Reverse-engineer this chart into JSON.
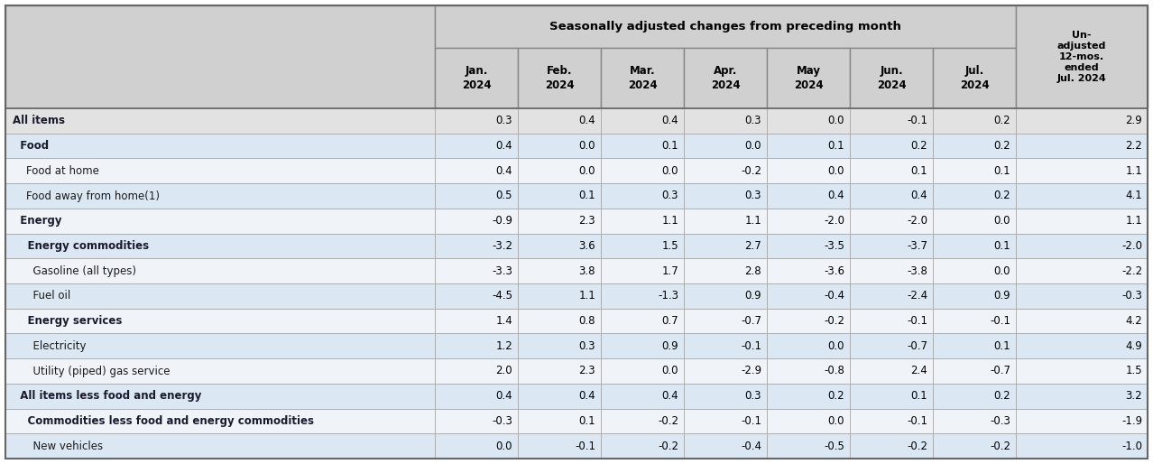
{
  "title_main": "Seasonally adjusted changes from preceding month",
  "col_headers_7": [
    "Jan.\n2024",
    "Feb.\n2024",
    "Mar.\n2024",
    "Apr.\n2024",
    "May\n2024",
    "Jun.\n2024",
    "Jul.\n2024"
  ],
  "col_header_last": "Un-\nadjusted\n12-mos.\nended\nJul. 2024",
  "rows": [
    {
      "label": "All items",
      "indent": 0,
      "bold": true,
      "bg": "#e2e2e2",
      "values": [
        0.3,
        0.4,
        0.4,
        0.3,
        0.0,
        -0.1,
        0.2,
        2.9
      ]
    },
    {
      "label": "  Food",
      "indent": 1,
      "bold": true,
      "bg": "#dbe8f4",
      "values": [
        0.4,
        0.0,
        0.1,
        0.0,
        0.1,
        0.2,
        0.2,
        2.2
      ]
    },
    {
      "label": "    Food at home",
      "indent": 2,
      "bold": false,
      "bg": "#f0f4f9",
      "values": [
        0.4,
        0.0,
        0.0,
        -0.2,
        0.0,
        0.1,
        0.1,
        1.1
      ]
    },
    {
      "label": "    Food away from home(1)",
      "indent": 2,
      "bold": false,
      "bg": "#dbe8f4",
      "values": [
        0.5,
        0.1,
        0.3,
        0.3,
        0.4,
        0.4,
        0.2,
        4.1
      ]
    },
    {
      "label": "  Energy",
      "indent": 1,
      "bold": true,
      "bg": "#f0f4f9",
      "values": [
        -0.9,
        2.3,
        1.1,
        1.1,
        -2.0,
        -2.0,
        0.0,
        1.1
      ]
    },
    {
      "label": "    Energy commodities",
      "indent": 2,
      "bold": true,
      "bg": "#dbe8f4",
      "values": [
        -3.2,
        3.6,
        1.5,
        2.7,
        -3.5,
        -3.7,
        0.1,
        -2.0
      ]
    },
    {
      "label": "      Gasoline (all types)",
      "indent": 3,
      "bold": false,
      "bg": "#f0f4f9",
      "values": [
        -3.3,
        3.8,
        1.7,
        2.8,
        -3.6,
        -3.8,
        0.0,
        -2.2
      ]
    },
    {
      "label": "      Fuel oil",
      "indent": 3,
      "bold": false,
      "bg": "#dbe8f4",
      "values": [
        -4.5,
        1.1,
        -1.3,
        0.9,
        -0.4,
        -2.4,
        0.9,
        -0.3
      ]
    },
    {
      "label": "    Energy services",
      "indent": 2,
      "bold": true,
      "bg": "#f0f4f9",
      "values": [
        1.4,
        0.8,
        0.7,
        -0.7,
        -0.2,
        -0.1,
        -0.1,
        4.2
      ]
    },
    {
      "label": "      Electricity",
      "indent": 3,
      "bold": false,
      "bg": "#dbe8f4",
      "values": [
        1.2,
        0.3,
        0.9,
        -0.1,
        0.0,
        -0.7,
        0.1,
        4.9
      ]
    },
    {
      "label": "      Utility (piped) gas service",
      "indent": 3,
      "bold": false,
      "bg": "#f0f4f9",
      "values": [
        2.0,
        2.3,
        0.0,
        -2.9,
        -0.8,
        2.4,
        -0.7,
        1.5
      ]
    },
    {
      "label": "  All items less food and energy",
      "indent": 1,
      "bold": true,
      "bg": "#dbe8f4",
      "values": [
        0.4,
        0.4,
        0.4,
        0.3,
        0.2,
        0.1,
        0.2,
        3.2
      ]
    },
    {
      "label": "    Commodities less food and energy commodities",
      "indent": 2,
      "bold": true,
      "bg": "#f0f4f9",
      "values": [
        -0.3,
        0.1,
        -0.2,
        -0.1,
        0.0,
        -0.1,
        -0.3,
        -1.9
      ]
    },
    {
      "label": "      New vehicles",
      "indent": 3,
      "bold": false,
      "bg": "#dbe8f4",
      "values": [
        0.0,
        -0.1,
        -0.2,
        -0.4,
        -0.5,
        -0.2,
        -0.2,
        -1.0
      ]
    }
  ],
  "header_bg": "#d0d0d0",
  "all_items_bg": "#e2e2e2",
  "blue_bg": "#dbe8f4",
  "white_bg": "#f0f4f9",
  "border_color": "#aaaaaa",
  "outer_border": "#888888"
}
